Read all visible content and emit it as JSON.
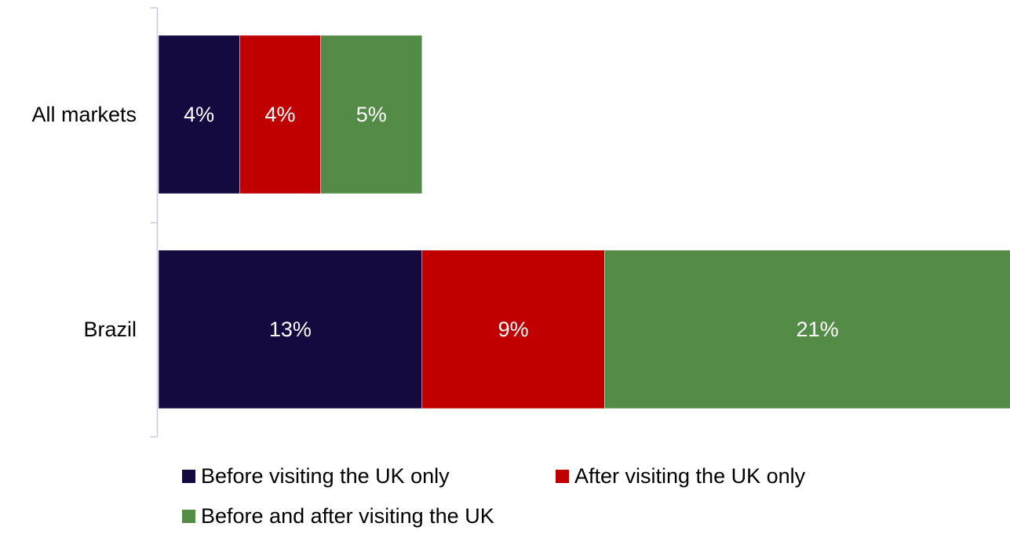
{
  "chart_data": {
    "type": "bar",
    "orientation": "horizontal",
    "stacked": true,
    "categories": [
      "All markets",
      "Brazil"
    ],
    "series": [
      {
        "name": "Before visiting the UK only",
        "values": [
          4,
          13
        ],
        "labels": [
          "4%",
          "13%"
        ],
        "color": "#140a40"
      },
      {
        "name": "After visiting the UK only",
        "values": [
          4,
          9
        ],
        "labels": [
          "4%",
          "9%"
        ],
        "color": "#c00000"
      },
      {
        "name": "Before and after visiting the UK",
        "values": [
          5,
          21
        ],
        "labels": [
          "5%",
          "21%"
        ],
        "color": "#548b46"
      }
    ],
    "xlim": [
      0,
      42
    ],
    "grid": false,
    "legend_position": "bottom",
    "axis_color": "#c8c8e6"
  }
}
